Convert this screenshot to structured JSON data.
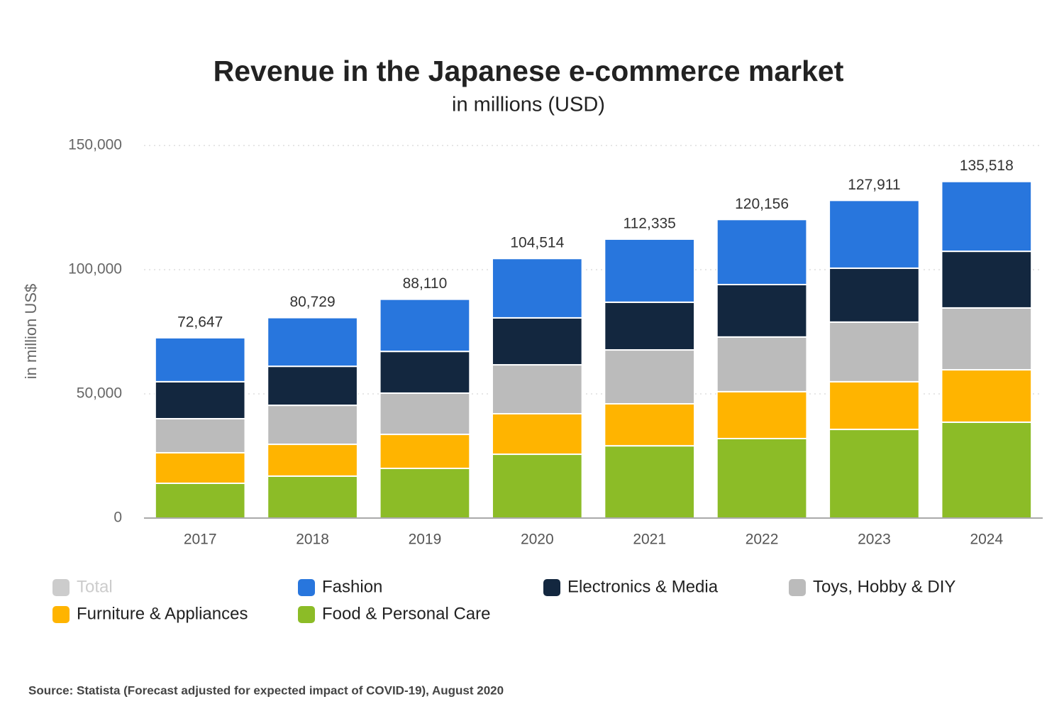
{
  "chart_data": {
    "type": "stacked_bar",
    "title": "Revenue in the Japanese e-commerce market",
    "subtitle": "in millions (USD)",
    "y_label": "in million US$",
    "source": "Source: Statista (Forecast adjusted for expected impact of COVID-19), August 2020",
    "categories": [
      "2017",
      "2018",
      "2019",
      "2020",
      "2021",
      "2022",
      "2023",
      "2024"
    ],
    "ylim": [
      0,
      150000
    ],
    "yticks": [
      0,
      {
        "value": 50000,
        "label": "50,000"
      },
      {
        "value": 100000,
        "label": "100,000"
      },
      {
        "value": 150000,
        "label": "150,000"
      }
    ],
    "grid": true,
    "legend": "bottom",
    "series": [
      {
        "name": "Total",
        "color": "#cccccc",
        "visible": false,
        "values": [
          72647,
          80729,
          88110,
          104514,
          112335,
          120156,
          127911,
          135518
        ],
        "value_labels": [
          "72,647",
          "80,729",
          "88,110",
          "104,514",
          "112,335",
          "120,156",
          "127,911",
          "135,518"
        ]
      },
      {
        "name": "Fashion",
        "color": "#2876dd",
        "values": [
          17700,
          19600,
          21000,
          23900,
          25400,
          26200,
          27300,
          28100
        ]
      },
      {
        "name": "Electronics & Media",
        "color": "#13273f",
        "values": [
          14900,
          15700,
          16800,
          18900,
          19200,
          21100,
          21700,
          22800
        ]
      },
      {
        "name": "Toys, Hobby & DIY",
        "color": "#bbbbbb",
        "values": [
          13700,
          15700,
          16600,
          19700,
          21700,
          22000,
          24000,
          24900
        ]
      },
      {
        "name": "Furniture & Appliances",
        "color": "#ffb400",
        "values": [
          12300,
          12800,
          13700,
          16300,
          16900,
          18900,
          19200,
          21100
        ]
      },
      {
        "name": "Food & Personal Care",
        "color": "#8cbc27",
        "values": [
          14000,
          16900,
          20000,
          25700,
          29100,
          32000,
          35700,
          38600
        ]
      }
    ]
  }
}
